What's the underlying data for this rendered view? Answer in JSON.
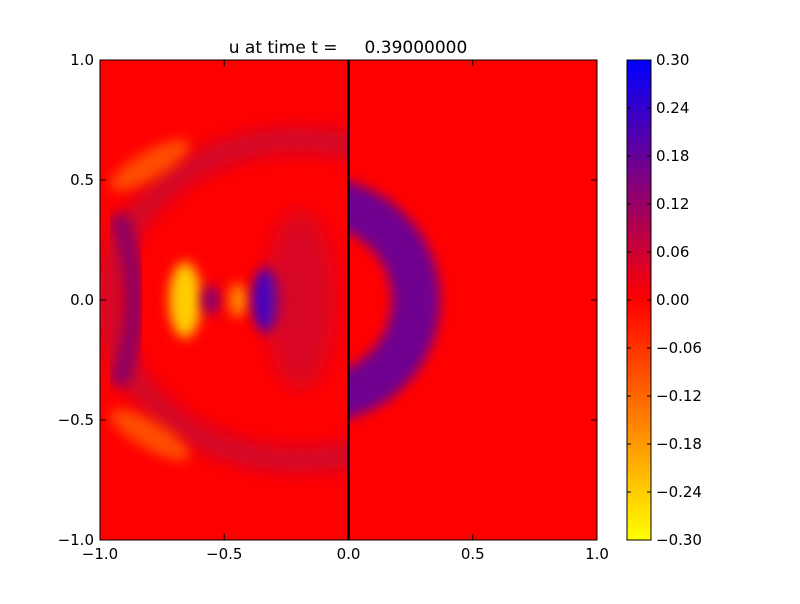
{
  "chart_data": {
    "type": "heatmap",
    "title": "u at time t =     0.39000000",
    "xlabel": "",
    "ylabel": "",
    "xlim": [
      -1.0,
      1.0
    ],
    "ylim": [
      -1.0,
      1.0
    ],
    "xticks": [
      "−1.0",
      "−0.5",
      "0.0",
      "0.5",
      "1.0"
    ],
    "xtick_values": [
      -1.0,
      -0.5,
      0.0,
      0.5,
      1.0
    ],
    "yticks": [
      "−1.0",
      "−0.5",
      "0.0",
      "0.5",
      "1.0"
    ],
    "ytick_values": [
      -1.0,
      -0.5,
      0.0,
      0.5,
      1.0
    ],
    "grid": false,
    "vertical_line_x": 0.0,
    "colormap": {
      "low": "#ffff00",
      "mid": "#ff0000",
      "high": "#0000ff"
    },
    "colorbar": {
      "range": [
        -0.3,
        0.3
      ],
      "tick_values": [
        0.3,
        0.24,
        0.18,
        0.12,
        0.06,
        0.0,
        -0.06,
        -0.12,
        -0.18,
        -0.24,
        -0.3
      ],
      "tick_labels": [
        "0.30",
        "0.24",
        "0.18",
        "0.12",
        "0.06",
        "0.00",
        "−0.06",
        "−0.12",
        "−0.18",
        "−0.24",
        "−0.30"
      ]
    },
    "features": [
      {
        "kind": "purple-crescent",
        "center": [
          0.0,
          0.0
        ],
        "value": 0.15
      },
      {
        "kind": "blue-crescent",
        "center": [
          -0.33,
          0.0
        ],
        "value": 0.22
      },
      {
        "kind": "yellow-crescent",
        "center": [
          -0.66,
          0.0
        ],
        "value": -0.26
      },
      {
        "kind": "purple-dot",
        "center": [
          -0.55,
          0.0
        ],
        "value": 0.12
      },
      {
        "kind": "orange-dot",
        "center": [
          -0.45,
          0.0
        ],
        "value": -0.15
      },
      {
        "kind": "purple-band",
        "center": [
          -0.92,
          0.0
        ],
        "value": 0.12
      },
      {
        "kind": "faint-ring",
        "center": [
          -0.4,
          0.0
        ],
        "value": 0.05
      }
    ]
  }
}
